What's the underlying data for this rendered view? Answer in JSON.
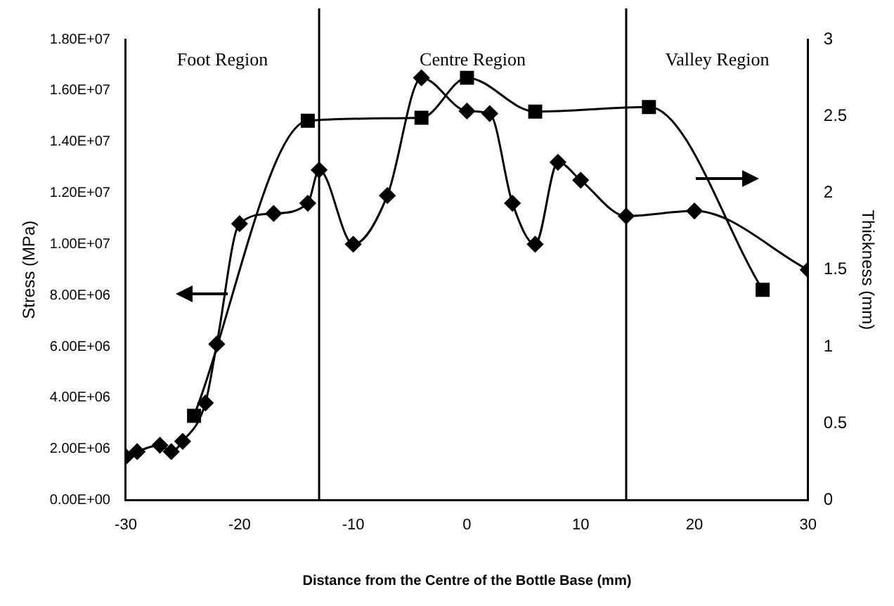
{
  "chart_data": {
    "type": "line",
    "xlabel": "Distance from the Centre of the Bottle Base (mm)",
    "ylabel": "Stress (MPa)",
    "y2label": "Thickness (mm)",
    "xlim": [
      -30,
      30
    ],
    "xticks": [
      -30,
      -20,
      -10,
      0,
      10,
      20,
      30
    ],
    "ylim": [
      0,
      18000000
    ],
    "yticks": [
      {
        "value": 0,
        "label": "0.00E+00"
      },
      {
        "value": 2000000,
        "label": "2.00E+06"
      },
      {
        "value": 4000000,
        "label": "4.00E+06"
      },
      {
        "value": 6000000,
        "label": "6.00E+06"
      },
      {
        "value": 8000000,
        "label": "8.00E+06"
      },
      {
        "value": 10000000,
        "label": "1.00E+07"
      },
      {
        "value": 12000000,
        "label": "1.20E+07"
      },
      {
        "value": 14000000,
        "label": "1.40E+07"
      },
      {
        "value": 16000000,
        "label": "1.60E+07"
      },
      {
        "value": 18000000,
        "label": "1.80E+07"
      }
    ],
    "y2lim": [
      0,
      3
    ],
    "y2ticks": [
      0,
      0.5,
      1,
      1.5,
      2,
      2.5,
      3
    ],
    "grid": false,
    "legend": false,
    "series": [
      {
        "color": "#000000",
        "marker": "diamond",
        "x": [
          -30,
          -29,
          -27,
          -26,
          -25,
          -23,
          -22,
          -20,
          -17,
          -14,
          -13,
          -10,
          -7,
          -4,
          0,
          2,
          4,
          6,
          8,
          10,
          14,
          20,
          30
        ],
        "values": [
          1700000,
          1900000,
          2150000,
          1900000,
          2300000,
          3800000,
          6100000,
          10800000,
          11200000,
          11600000,
          12900000,
          10000000,
          11900000,
          16500000,
          15200000,
          15100000,
          11600000,
          10000000,
          13200000,
          12500000,
          11100000,
          11300000,
          9000000
        ]
      },
      {
        "color": "#000000",
        "marker": "square",
        "axis": "y2",
        "x": [
          -24,
          -14,
          -4,
          0,
          6,
          16,
          26
        ],
        "values": [
          0.55,
          2.47,
          2.49,
          2.75,
          2.53,
          2.56,
          1.37
        ]
      }
    ],
    "ref_lines": [
      {
        "axis": "x",
        "value": -13
      },
      {
        "axis": "x",
        "value": 14
      }
    ],
    "annotations": [
      "Foot Region",
      "Centre Region",
      "Valley Region"
    ]
  }
}
